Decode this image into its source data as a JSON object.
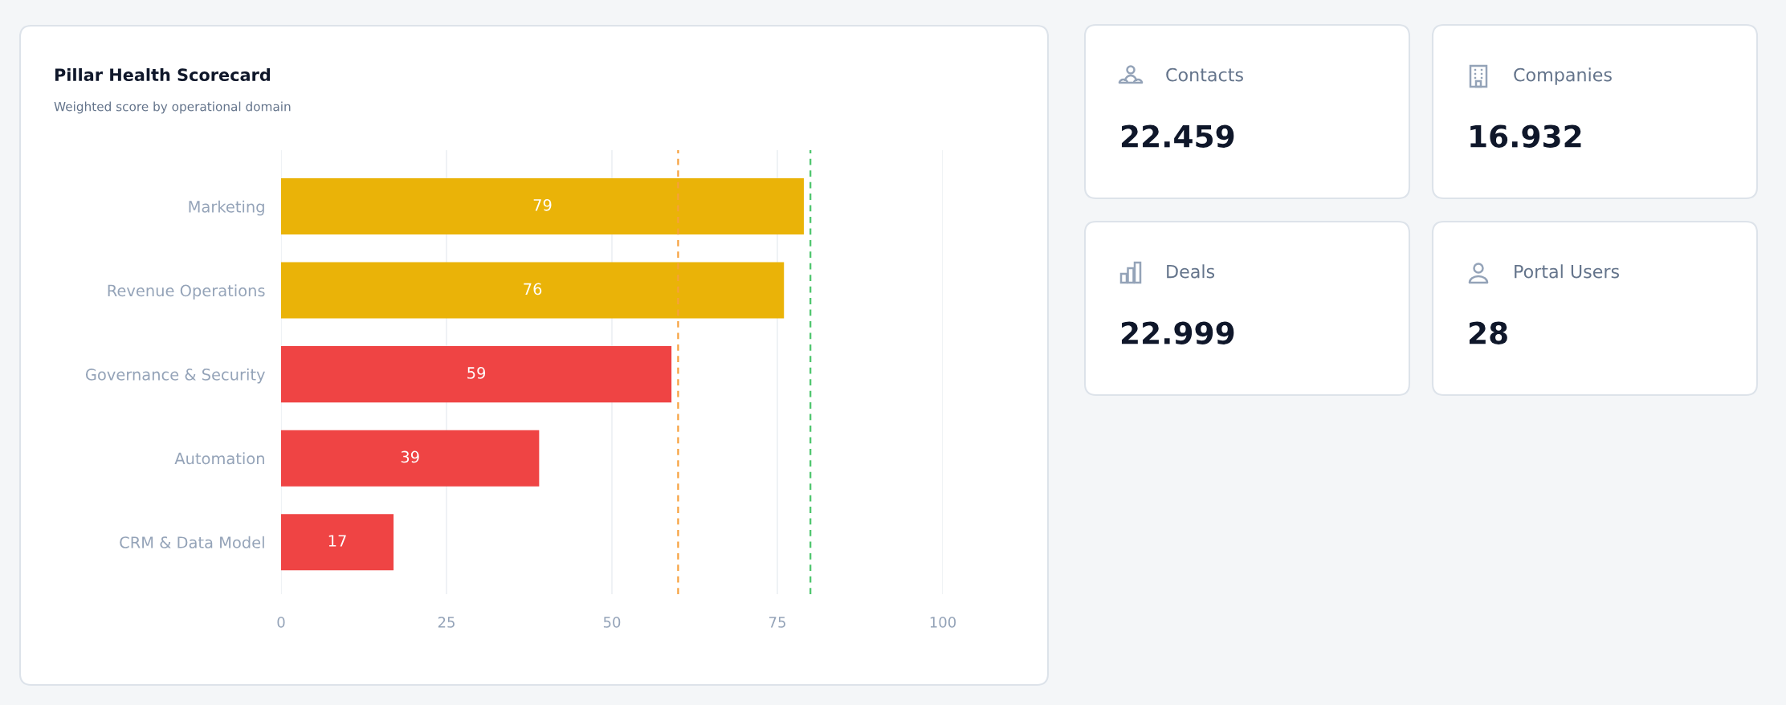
{
  "chart_data": [
    {
      "type": "bar",
      "title": "Pillar Health Scorecard",
      "subtitle": "Weighted score by operational domain",
      "orientation": "horizontal",
      "categories": [
        "Marketing",
        "Revenue Operations",
        "Governance & Security",
        "Automation",
        "CRM & Data Model"
      ],
      "values": [
        79,
        76,
        59,
        39,
        17
      ],
      "colors": [
        "#eab308",
        "#eab308",
        "#ef4444",
        "#ef4444",
        "#ef4444"
      ],
      "xlim": [
        0,
        100
      ],
      "xticks": [
        0,
        25,
        50,
        75,
        100
      ],
      "grid": "x",
      "data_labels": true,
      "ref_lines": [
        {
          "axis": "x",
          "value": 60,
          "color": "#f7a03c",
          "line_style": "dashed"
        },
        {
          "axis": "x",
          "value": 80,
          "color": "#4cc56c",
          "line_style": "dashed"
        }
      ]
    },
    {
      "type": "other",
      "categories": [
        "Contacts",
        "Companies",
        "Deals",
        "Portal Users"
      ],
      "values": [
        22.459,
        16.932,
        22.999,
        28
      ],
      "data_labels": true
    }
  ]
}
